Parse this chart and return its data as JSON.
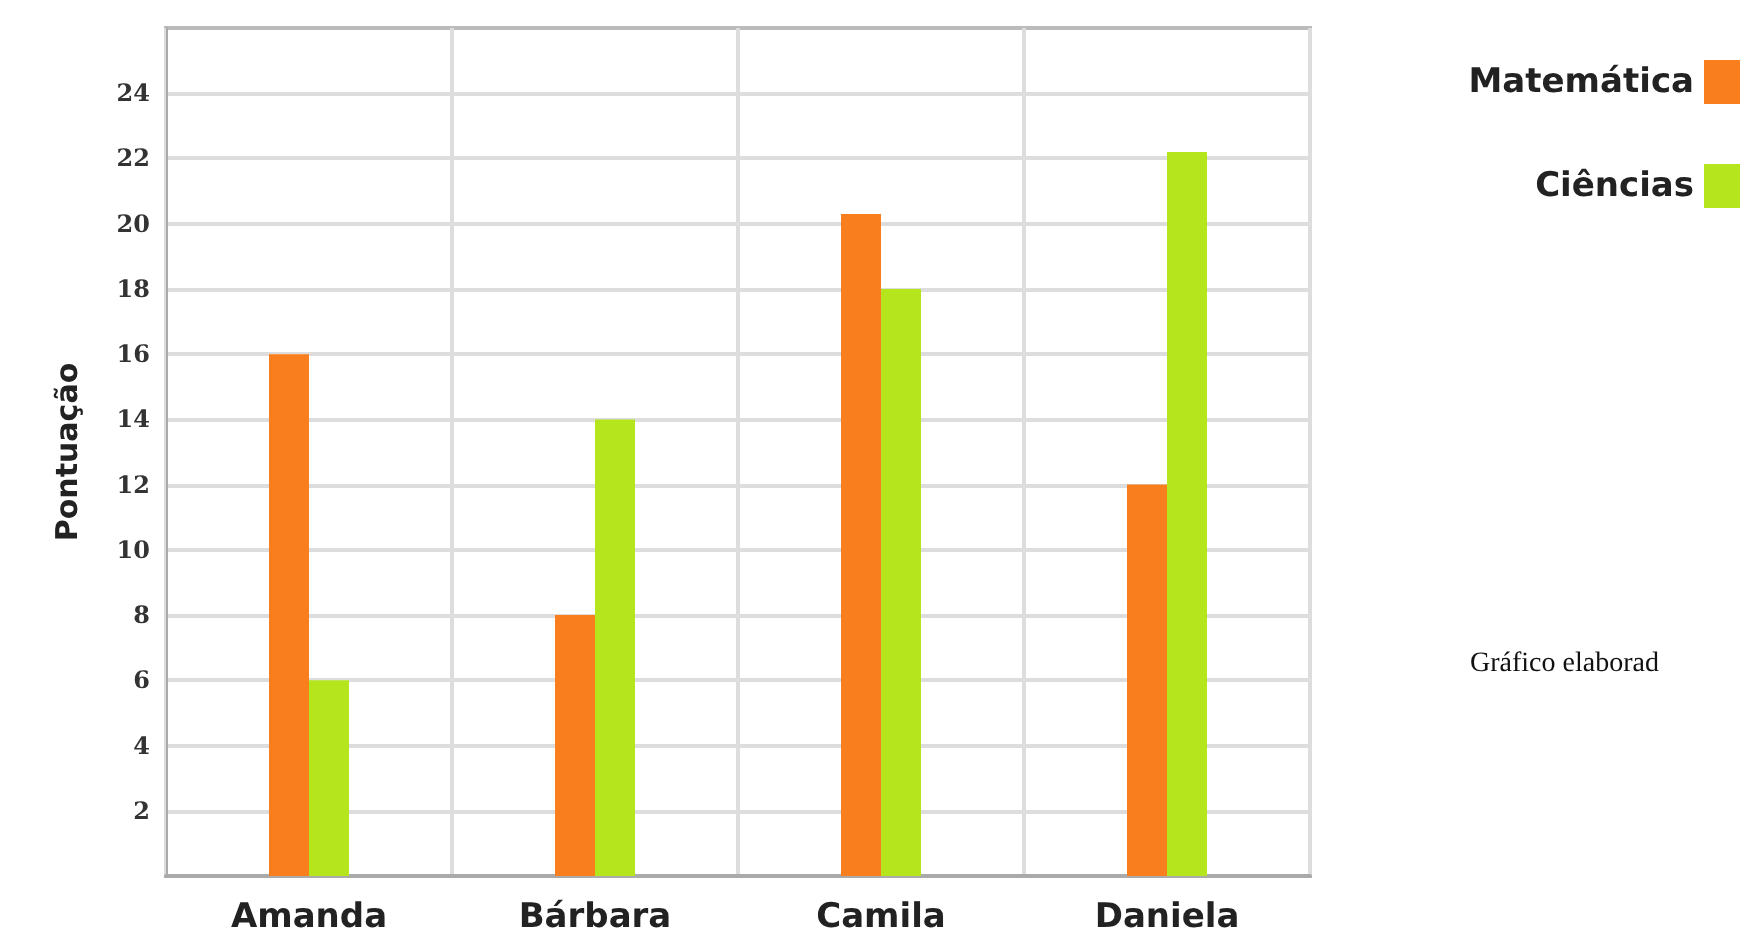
{
  "chart_data": {
    "type": "bar",
    "ylabel": "Pontuação",
    "categories": [
      "Amanda",
      "Bárbara",
      "Camila",
      "Daniela"
    ],
    "series": [
      {
        "name": "Matemática",
        "color": "#f97f1e",
        "values": [
          16,
          8,
          20.3,
          12
        ]
      },
      {
        "name": "Ciências",
        "color": "#b5e61d",
        "values": [
          6,
          14,
          18,
          22.2
        ]
      }
    ],
    "ylim": [
      0,
      26
    ],
    "yticks": [
      2,
      4,
      6,
      8,
      10,
      12,
      14,
      16,
      18,
      20,
      22,
      24
    ],
    "grid": true,
    "legend": "top right",
    "annotations": [
      "Gráfico elaborad"
    ]
  }
}
